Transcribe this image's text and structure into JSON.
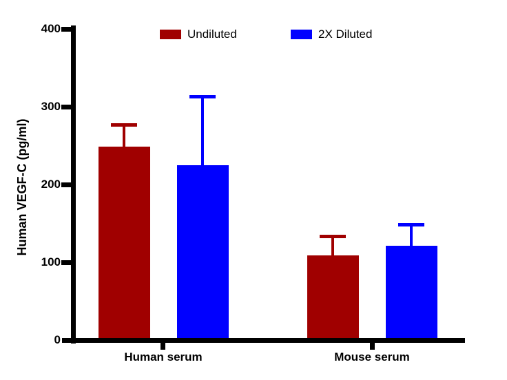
{
  "chart_data": {
    "type": "bar",
    "title": "",
    "categories": [
      "Human serum",
      "Mouse serum"
    ],
    "series": [
      {
        "name": "Undiluted",
        "color": "#A00000",
        "values": [
          249,
          109
        ],
        "errors": [
          28,
          25
        ]
      },
      {
        "name": "2X Diluted",
        "color": "#0000FF",
        "values": [
          225,
          121
        ],
        "errors": [
          88,
          28
        ]
      }
    ],
    "error_bars": "upper standard deviation only",
    "xlabel": "",
    "ylabel": "Human VEGF-C (pg/ml)",
    "ylim": [
      0,
      400
    ],
    "yticks": [
      0,
      100,
      200,
      300,
      400
    ],
    "grid": "off",
    "legend_position": "top",
    "axis_color": "#000000",
    "background_color": "#FFFFFF"
  }
}
